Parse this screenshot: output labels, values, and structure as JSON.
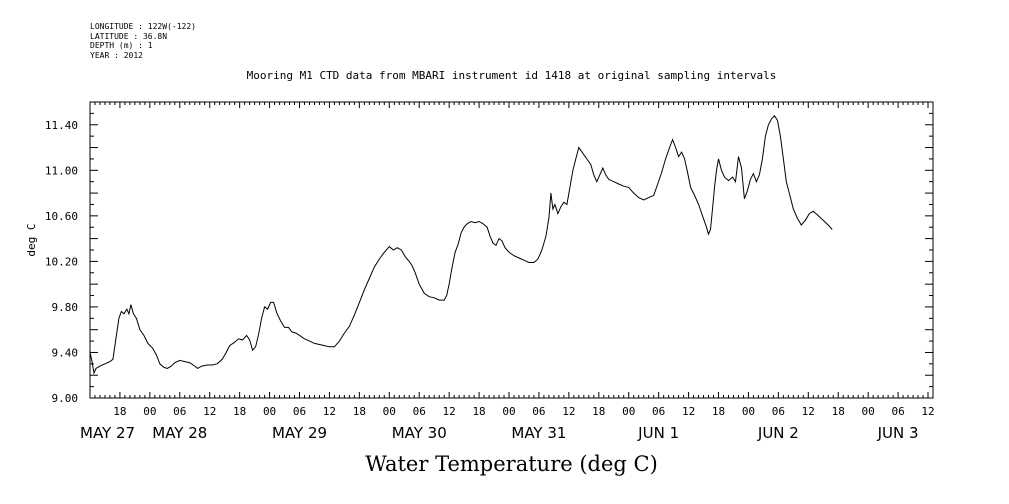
{
  "meta": {
    "longitude": "LONGITUDE : 122W(-122)",
    "latitude": "LATITUDE : 36.8N",
    "depth": "DEPTH (m) : 1",
    "year": "YEAR : 2012"
  },
  "chart_data": {
    "type": "line",
    "title": "Mooring M1 CTD data from MBARI instrument id 1418 at original sampling intervals",
    "bottom_title": "Water Temperature (deg C)",
    "ylabel": "deg C",
    "xlabel": "",
    "ylim": [
      9.0,
      11.6
    ],
    "y_ticks": [
      "9.00",
      "9.40",
      "9.80",
      "10.20",
      "10.60",
      "11.00",
      "11.40"
    ],
    "x_axis": {
      "unit": "hours since 2012-05-27 00:00",
      "range": [
        12,
        181
      ],
      "hour_ticks": [
        {
          "h": 18,
          "label": "18"
        },
        {
          "h": 24,
          "label": "00"
        },
        {
          "h": 30,
          "label": "06"
        },
        {
          "h": 36,
          "label": "12"
        },
        {
          "h": 42,
          "label": "18"
        },
        {
          "h": 48,
          "label": "00"
        },
        {
          "h": 54,
          "label": "06"
        },
        {
          "h": 60,
          "label": "12"
        },
        {
          "h": 66,
          "label": "18"
        },
        {
          "h": 72,
          "label": "00"
        },
        {
          "h": 78,
          "label": "06"
        },
        {
          "h": 84,
          "label": "12"
        },
        {
          "h": 90,
          "label": "18"
        },
        {
          "h": 96,
          "label": "00"
        },
        {
          "h": 102,
          "label": "06"
        },
        {
          "h": 108,
          "label": "12"
        },
        {
          "h": 114,
          "label": "18"
        },
        {
          "h": 120,
          "label": "00"
        },
        {
          "h": 126,
          "label": "06"
        },
        {
          "h": 132,
          "label": "12"
        },
        {
          "h": 138,
          "label": "18"
        },
        {
          "h": 144,
          "label": "00"
        },
        {
          "h": 150,
          "label": "06"
        },
        {
          "h": 156,
          "label": "12"
        },
        {
          "h": 162,
          "label": "18"
        },
        {
          "h": 168,
          "label": "00"
        },
        {
          "h": 174,
          "label": "06"
        },
        {
          "h": 180,
          "label": "12"
        }
      ],
      "day_labels": [
        {
          "h": 12,
          "label": "MAY 27"
        },
        {
          "h": 30,
          "label": "MAY 28"
        },
        {
          "h": 54,
          "label": "MAY 29"
        },
        {
          "h": 78,
          "label": "MAY 30"
        },
        {
          "h": 102,
          "label": "MAY 31"
        },
        {
          "h": 126,
          "label": "JUN  1"
        },
        {
          "h": 150,
          "label": "JUN  2"
        },
        {
          "h": 174,
          "label": "JUN  3"
        }
      ]
    },
    "series": [
      {
        "values": [
          [
            12.0,
            9.4
          ],
          [
            12.4,
            9.32
          ],
          [
            12.8,
            9.22
          ],
          [
            13.2,
            9.26
          ],
          [
            14.0,
            9.28
          ],
          [
            15.0,
            9.3
          ],
          [
            16.0,
            9.32
          ],
          [
            16.6,
            9.34
          ],
          [
            17.2,
            9.52
          ],
          [
            17.8,
            9.7
          ],
          [
            18.3,
            9.76
          ],
          [
            18.8,
            9.74
          ],
          [
            19.4,
            9.78
          ],
          [
            19.8,
            9.74
          ],
          [
            20.2,
            9.82
          ],
          [
            20.7,
            9.74
          ],
          [
            21.3,
            9.7
          ],
          [
            22.0,
            9.6
          ],
          [
            22.8,
            9.55
          ],
          [
            23.6,
            9.48
          ],
          [
            24.5,
            9.44
          ],
          [
            25.3,
            9.38
          ],
          [
            26.0,
            9.3
          ],
          [
            26.8,
            9.27
          ],
          [
            27.5,
            9.26
          ],
          [
            28.3,
            9.28
          ],
          [
            29.0,
            9.31
          ],
          [
            30.0,
            9.33
          ],
          [
            31.0,
            9.32
          ],
          [
            32.0,
            9.31
          ],
          [
            33.0,
            9.28
          ],
          [
            33.6,
            9.26
          ],
          [
            34.4,
            9.28
          ],
          [
            35.5,
            9.29
          ],
          [
            36.5,
            9.29
          ],
          [
            37.5,
            9.3
          ],
          [
            38.5,
            9.34
          ],
          [
            39.3,
            9.4
          ],
          [
            40.0,
            9.46
          ],
          [
            41.0,
            9.49
          ],
          [
            41.8,
            9.52
          ],
          [
            42.6,
            9.51
          ],
          [
            43.4,
            9.55
          ],
          [
            44.0,
            9.51
          ],
          [
            44.6,
            9.42
          ],
          [
            45.2,
            9.45
          ],
          [
            45.8,
            9.56
          ],
          [
            46.4,
            9.7
          ],
          [
            47.0,
            9.8
          ],
          [
            47.6,
            9.78
          ],
          [
            48.2,
            9.84
          ],
          [
            48.8,
            9.84
          ],
          [
            49.5,
            9.74
          ],
          [
            50.2,
            9.68
          ],
          [
            51.0,
            9.62
          ],
          [
            51.8,
            9.62
          ],
          [
            52.5,
            9.58
          ],
          [
            53.3,
            9.57
          ],
          [
            54.0,
            9.55
          ],
          [
            55.0,
            9.52
          ],
          [
            56.0,
            9.5
          ],
          [
            57.0,
            9.48
          ],
          [
            58.0,
            9.47
          ],
          [
            59.0,
            9.46
          ],
          [
            60.0,
            9.45
          ],
          [
            61.0,
            9.45
          ],
          [
            62.0,
            9.5
          ],
          [
            63.0,
            9.57
          ],
          [
            64.0,
            9.63
          ],
          [
            65.0,
            9.73
          ],
          [
            66.0,
            9.84
          ],
          [
            67.0,
            9.95
          ],
          [
            68.0,
            10.05
          ],
          [
            69.0,
            10.15
          ],
          [
            70.0,
            10.22
          ],
          [
            71.0,
            10.28
          ],
          [
            72.0,
            10.33
          ],
          [
            72.8,
            10.3
          ],
          [
            73.6,
            10.32
          ],
          [
            74.4,
            10.3
          ],
          [
            75.2,
            10.24
          ],
          [
            76.0,
            10.2
          ],
          [
            76.6,
            10.16
          ],
          [
            77.2,
            10.1
          ],
          [
            78.0,
            10.0
          ],
          [
            79.0,
            9.92
          ],
          [
            80.0,
            9.89
          ],
          [
            81.0,
            9.88
          ],
          [
            82.0,
            9.86
          ],
          [
            83.0,
            9.86
          ],
          [
            83.5,
            9.9
          ],
          [
            84.0,
            10.0
          ],
          [
            84.6,
            10.15
          ],
          [
            85.2,
            10.28
          ],
          [
            85.8,
            10.35
          ],
          [
            86.4,
            10.45
          ],
          [
            87.0,
            10.5
          ],
          [
            87.6,
            10.53
          ],
          [
            88.4,
            10.55
          ],
          [
            89.2,
            10.54
          ],
          [
            90.0,
            10.55
          ],
          [
            90.8,
            10.53
          ],
          [
            91.6,
            10.5
          ],
          [
            92.2,
            10.42
          ],
          [
            92.8,
            10.36
          ],
          [
            93.4,
            10.34
          ],
          [
            94.0,
            10.4
          ],
          [
            94.6,
            10.38
          ],
          [
            95.2,
            10.32
          ],
          [
            96.0,
            10.28
          ],
          [
            97.0,
            10.25
          ],
          [
            98.0,
            10.23
          ],
          [
            99.0,
            10.21
          ],
          [
            100.0,
            10.19
          ],
          [
            101.0,
            10.19
          ],
          [
            101.8,
            10.22
          ],
          [
            102.6,
            10.3
          ],
          [
            103.4,
            10.42
          ],
          [
            104.0,
            10.58
          ],
          [
            104.4,
            10.8
          ],
          [
            104.8,
            10.66
          ],
          [
            105.2,
            10.7
          ],
          [
            105.8,
            10.62
          ],
          [
            106.4,
            10.68
          ],
          [
            107.0,
            10.72
          ],
          [
            107.6,
            10.7
          ],
          [
            108.2,
            10.85
          ],
          [
            108.8,
            11.0
          ],
          [
            109.4,
            11.1
          ],
          [
            110.0,
            11.2
          ],
          [
            110.8,
            11.15
          ],
          [
            111.6,
            11.1
          ],
          [
            112.4,
            11.05
          ],
          [
            113.0,
            10.96
          ],
          [
            113.6,
            10.9
          ],
          [
            114.2,
            10.96
          ],
          [
            114.8,
            11.02
          ],
          [
            115.4,
            10.96
          ],
          [
            116.0,
            10.92
          ],
          [
            117.0,
            10.9
          ],
          [
            118.0,
            10.88
          ],
          [
            119.0,
            10.86
          ],
          [
            120.0,
            10.85
          ],
          [
            121.0,
            10.8
          ],
          [
            122.0,
            10.76
          ],
          [
            123.0,
            10.74
          ],
          [
            124.0,
            10.76
          ],
          [
            125.0,
            10.78
          ],
          [
            125.8,
            10.88
          ],
          [
            126.6,
            10.98
          ],
          [
            127.4,
            11.1
          ],
          [
            128.2,
            11.2
          ],
          [
            128.8,
            11.27
          ],
          [
            129.4,
            11.2
          ],
          [
            130.0,
            11.12
          ],
          [
            130.6,
            11.16
          ],
          [
            131.2,
            11.1
          ],
          [
            131.8,
            10.98
          ],
          [
            132.4,
            10.85
          ],
          [
            133.2,
            10.78
          ],
          [
            134.0,
            10.7
          ],
          [
            134.8,
            10.6
          ],
          [
            135.6,
            10.5
          ],
          [
            136.0,
            10.44
          ],
          [
            136.4,
            10.48
          ],
          [
            136.8,
            10.66
          ],
          [
            137.2,
            10.85
          ],
          [
            137.6,
            11.0
          ],
          [
            138.0,
            11.1
          ],
          [
            138.6,
            11.0
          ],
          [
            139.2,
            10.94
          ],
          [
            140.0,
            10.91
          ],
          [
            140.8,
            10.94
          ],
          [
            141.4,
            10.9
          ],
          [
            142.0,
            11.12
          ],
          [
            142.6,
            11.02
          ],
          [
            143.2,
            10.75
          ],
          [
            143.8,
            10.82
          ],
          [
            144.4,
            10.92
          ],
          [
            145.0,
            10.97
          ],
          [
            145.6,
            10.9
          ],
          [
            146.2,
            10.96
          ],
          [
            146.8,
            11.1
          ],
          [
            147.4,
            11.3
          ],
          [
            148.0,
            11.4
          ],
          [
            148.6,
            11.45
          ],
          [
            149.2,
            11.48
          ],
          [
            149.8,
            11.44
          ],
          [
            150.4,
            11.3
          ],
          [
            151.0,
            11.1
          ],
          [
            151.6,
            10.9
          ],
          [
            152.2,
            10.8
          ],
          [
            153.0,
            10.66
          ],
          [
            153.8,
            10.58
          ],
          [
            154.6,
            10.52
          ],
          [
            155.4,
            10.56
          ],
          [
            156.2,
            10.62
          ],
          [
            157.0,
            10.64
          ],
          [
            158.0,
            10.6
          ],
          [
            159.0,
            10.56
          ],
          [
            160.0,
            10.52
          ],
          [
            160.8,
            10.48
          ]
        ]
      }
    ]
  }
}
